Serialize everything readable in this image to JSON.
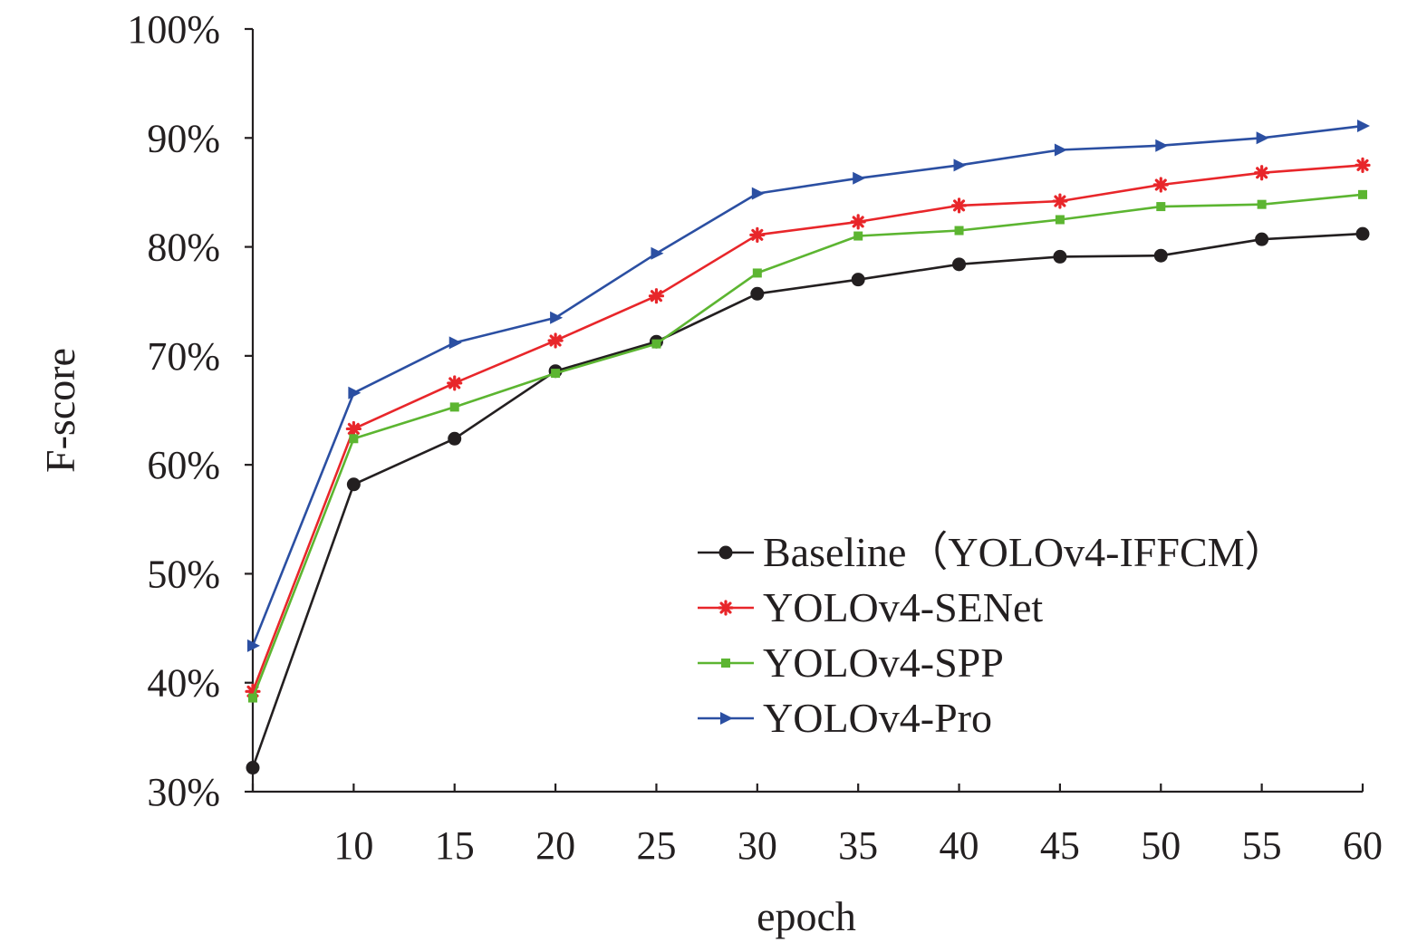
{
  "chart_data": {
    "type": "line",
    "xlabel": "epoch",
    "ylabel": "F-score",
    "ylim": [
      30,
      100
    ],
    "y_tick_values": [
      30,
      40,
      50,
      60,
      70,
      80,
      90,
      100
    ],
    "y_tick_labels": [
      "30%",
      "40%",
      "50%",
      "60%",
      "70%",
      "80%",
      "90%",
      "100%"
    ],
    "x_tick_labels": [
      "10",
      "15",
      "20",
      "25",
      "30",
      "35",
      "40",
      "45",
      "50",
      "55",
      "60"
    ],
    "x_tick_values": [
      10,
      15,
      20,
      25,
      30,
      35,
      40,
      45,
      50,
      55,
      60
    ],
    "x": [
      5,
      10,
      15,
      20,
      25,
      30,
      35,
      40,
      45,
      50,
      55,
      60
    ],
    "xlim": [
      5,
      60
    ],
    "legend_position": "lower-right",
    "grid": false,
    "series": [
      {
        "name": "Baseline（YOLOv4-IFFCM）",
        "color": "#231f20",
        "marker": "circle",
        "values": [
          32.2,
          58.2,
          62.4,
          68.6,
          71.3,
          75.7,
          77.0,
          78.4,
          79.1,
          79.2,
          80.7,
          81.2
        ]
      },
      {
        "name": "YOLOv4-SENet",
        "color": "#e8262a",
        "marker": "asterisk",
        "values": [
          39.2,
          63.3,
          67.5,
          71.4,
          75.5,
          81.1,
          82.3,
          83.8,
          84.2,
          85.7,
          86.8,
          87.5
        ]
      },
      {
        "name": "YOLOv4-SPP",
        "color": "#5cb531",
        "marker": "square",
        "values": [
          38.6,
          62.4,
          65.3,
          68.4,
          71.1,
          77.6,
          81.0,
          81.5,
          82.5,
          83.7,
          83.9,
          84.8
        ]
      },
      {
        "name": "YOLOv4-Pro",
        "color": "#2b4fa2",
        "marker": "triangle-right",
        "values": [
          43.4,
          66.6,
          71.2,
          73.5,
          79.4,
          84.9,
          86.3,
          87.5,
          88.9,
          89.3,
          90.0,
          91.1
        ]
      }
    ]
  }
}
